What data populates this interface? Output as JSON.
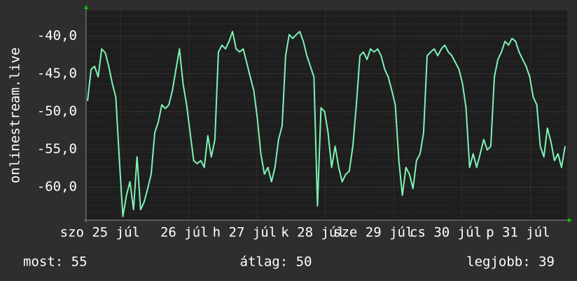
{
  "chart_data": {
    "type": "line",
    "y_label": "onlinestream.live",
    "x_labels": [
      "szo 25 júl",
      "26 júl",
      "h 27 júl",
      "k 28 júl",
      "sze 29 júl",
      "cs 30 júl",
      "p 31 júl"
    ],
    "ylim": [
      -64.4,
      -36.6
    ],
    "yticks": [
      {
        "value": -40,
        "label": "-40,0"
      },
      {
        "value": -45,
        "label": "-45,0"
      },
      {
        "value": -50,
        "label": "-50,0"
      },
      {
        "value": -55,
        "label": "-55,0"
      },
      {
        "value": -60,
        "label": "-60,0"
      }
    ],
    "grid": true,
    "series": [
      {
        "color": "#7ff2b4",
        "values": [
          -48.6,
          -44.4,
          -44,
          -45.4,
          -41.7,
          -42.2,
          -44,
          -46.3,
          -48.1,
          -56.5,
          -63.9,
          -61.1,
          -59.3,
          -63,
          -56,
          -63,
          -62,
          -60.2,
          -58.3,
          -52.8,
          -51.4,
          -49.1,
          -49.6,
          -49.1,
          -47.2,
          -44.4,
          -41.7,
          -46.3,
          -49.1,
          -52.8,
          -56.5,
          -56.9,
          -56.5,
          -57.4,
          -53.2,
          -56,
          -53.7,
          -42.1,
          -41.2,
          -41.7,
          -40.7,
          -39.4,
          -41.7,
          -42.1,
          -41.7,
          -43.5,
          -45.4,
          -47.2,
          -50.9,
          -55.6,
          -58.3,
          -57.4,
          -59.3,
          -57.4,
          -53.7,
          -51.9,
          -42.6,
          -39.8,
          -40.3,
          -39.8,
          -39.4,
          -40.7,
          -42.6,
          -44,
          -45.4,
          -62.5,
          -49.5,
          -50,
          -52.8,
          -57.4,
          -54.6,
          -57.4,
          -59.3,
          -58.3,
          -57.9,
          -54.6,
          -49.1,
          -42.6,
          -42.1,
          -43.1,
          -41.7,
          -42.1,
          -41.7,
          -42.6,
          -44.4,
          -45.4,
          -47.2,
          -49.1,
          -56.5,
          -61.1,
          -57.4,
          -58.3,
          -60.2,
          -56.5,
          -55.6,
          -52.8,
          -42.6,
          -42.1,
          -41.7,
          -42.6,
          -41.7,
          -41.2,
          -42.1,
          -42.6,
          -43.5,
          -44.4,
          -46.3,
          -49.5,
          -57.4,
          -55.6,
          -57.4,
          -55.6,
          -53.7,
          -55.1,
          -54.6,
          -45.4,
          -43.1,
          -42.1,
          -40.7,
          -41.2,
          -40.3,
          -40.7,
          -42.1,
          -43.1,
          -44,
          -45.4,
          -48.1,
          -49.1,
          -54.6,
          -56,
          -52.2,
          -54,
          -56.5,
          -55.6,
          -57.4,
          -54.6
        ]
      }
    ],
    "stats": [
      "most: 55",
      "átlag: 50",
      "legjobb: 39"
    ]
  }
}
